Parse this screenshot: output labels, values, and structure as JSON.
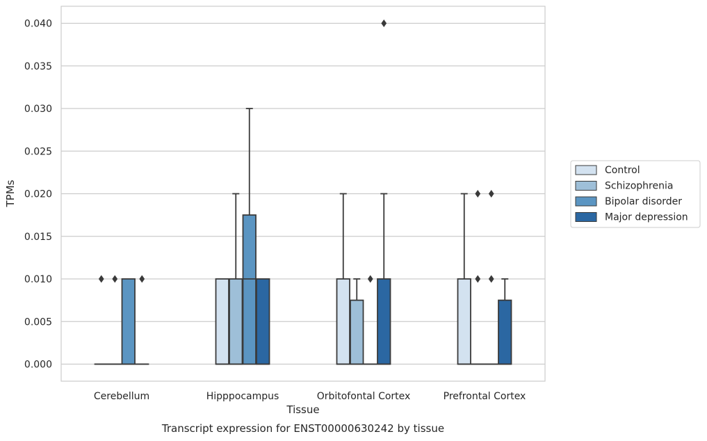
{
  "chart_data": {
    "type": "box",
    "xlabel": "Tissue",
    "ylabel": "TPMs",
    "caption": "Transcript expression for ENST00000630242 by tissue",
    "ylim": [
      -0.002,
      0.042
    ],
    "yticks": [
      0.0,
      0.005,
      0.01,
      0.015,
      0.02,
      0.025,
      0.03,
      0.035,
      0.04
    ],
    "ytick_labels": [
      "0.000",
      "0.005",
      "0.010",
      "0.015",
      "0.020",
      "0.025",
      "0.030",
      "0.035",
      "0.040"
    ],
    "grid": "horizontal",
    "legend_position": "right",
    "categories": [
      "Cerebellum",
      "Hipppocampus",
      "Orbitofontal Cortex",
      "Prefrontal Cortex"
    ],
    "series": [
      {
        "name": "Control",
        "color": "#d3e2f0",
        "boxes": [
          {
            "q1": 0.0,
            "median": 0.0,
            "q3": 0.0,
            "whislo": 0.0,
            "whishi": 0.0,
            "fliers": [
              0.01
            ]
          },
          {
            "q1": 0.0,
            "median": 0.0,
            "q3": 0.01,
            "whislo": 0.0,
            "whishi": 0.01,
            "fliers": []
          },
          {
            "q1": 0.0,
            "median": 0.0,
            "q3": 0.01,
            "whislo": 0.0,
            "whishi": 0.02,
            "fliers": []
          },
          {
            "q1": 0.0,
            "median": 0.0,
            "q3": 0.01,
            "whislo": 0.0,
            "whishi": 0.02,
            "fliers": []
          }
        ]
      },
      {
        "name": "Schizophrenia",
        "color": "#9ebfd8",
        "boxes": [
          {
            "q1": 0.0,
            "median": 0.0,
            "q3": 0.0,
            "whislo": 0.0,
            "whishi": 0.0,
            "fliers": [
              0.01
            ]
          },
          {
            "q1": 0.0,
            "median": 0.0,
            "q3": 0.01,
            "whislo": 0.0,
            "whishi": 0.02,
            "fliers": []
          },
          {
            "q1": 0.0,
            "median": 0.0,
            "q3": 0.0075,
            "whislo": 0.0,
            "whishi": 0.01,
            "fliers": []
          },
          {
            "q1": 0.0,
            "median": 0.0,
            "q3": 0.0,
            "whislo": 0.0,
            "whishi": 0.0,
            "fliers": [
              0.01,
              0.02
            ]
          }
        ]
      },
      {
        "name": "Bipolar disorder",
        "color": "#5b95c2",
        "boxes": [
          {
            "q1": 0.0,
            "median": 0.0,
            "q3": 0.01,
            "whislo": 0.0,
            "whishi": 0.01,
            "fliers": []
          },
          {
            "q1": 0.0,
            "median": 0.01,
            "q3": 0.0175,
            "whislo": 0.0,
            "whishi": 0.03,
            "fliers": []
          },
          {
            "q1": 0.0,
            "median": 0.0,
            "q3": 0.0,
            "whislo": 0.0,
            "whishi": 0.0,
            "fliers": [
              0.01
            ]
          },
          {
            "q1": 0.0,
            "median": 0.0,
            "q3": 0.0,
            "whislo": 0.0,
            "whishi": 0.0,
            "fliers": [
              0.01,
              0.02
            ]
          }
        ]
      },
      {
        "name": "Major depression",
        "color": "#2b67a2",
        "boxes": [
          {
            "q1": 0.0,
            "median": 0.0,
            "q3": 0.0,
            "whislo": 0.0,
            "whishi": 0.0,
            "fliers": [
              0.01
            ]
          },
          {
            "q1": 0.0,
            "median": 0.0,
            "q3": 0.01,
            "whislo": 0.0,
            "whishi": 0.01,
            "fliers": []
          },
          {
            "q1": 0.0,
            "median": 0.0,
            "q3": 0.01,
            "whislo": 0.0,
            "whishi": 0.02,
            "fliers": [
              0.04
            ]
          },
          {
            "q1": 0.0,
            "median": 0.0,
            "q3": 0.0075,
            "whislo": 0.0,
            "whishi": 0.01,
            "fliers": []
          }
        ]
      }
    ]
  }
}
